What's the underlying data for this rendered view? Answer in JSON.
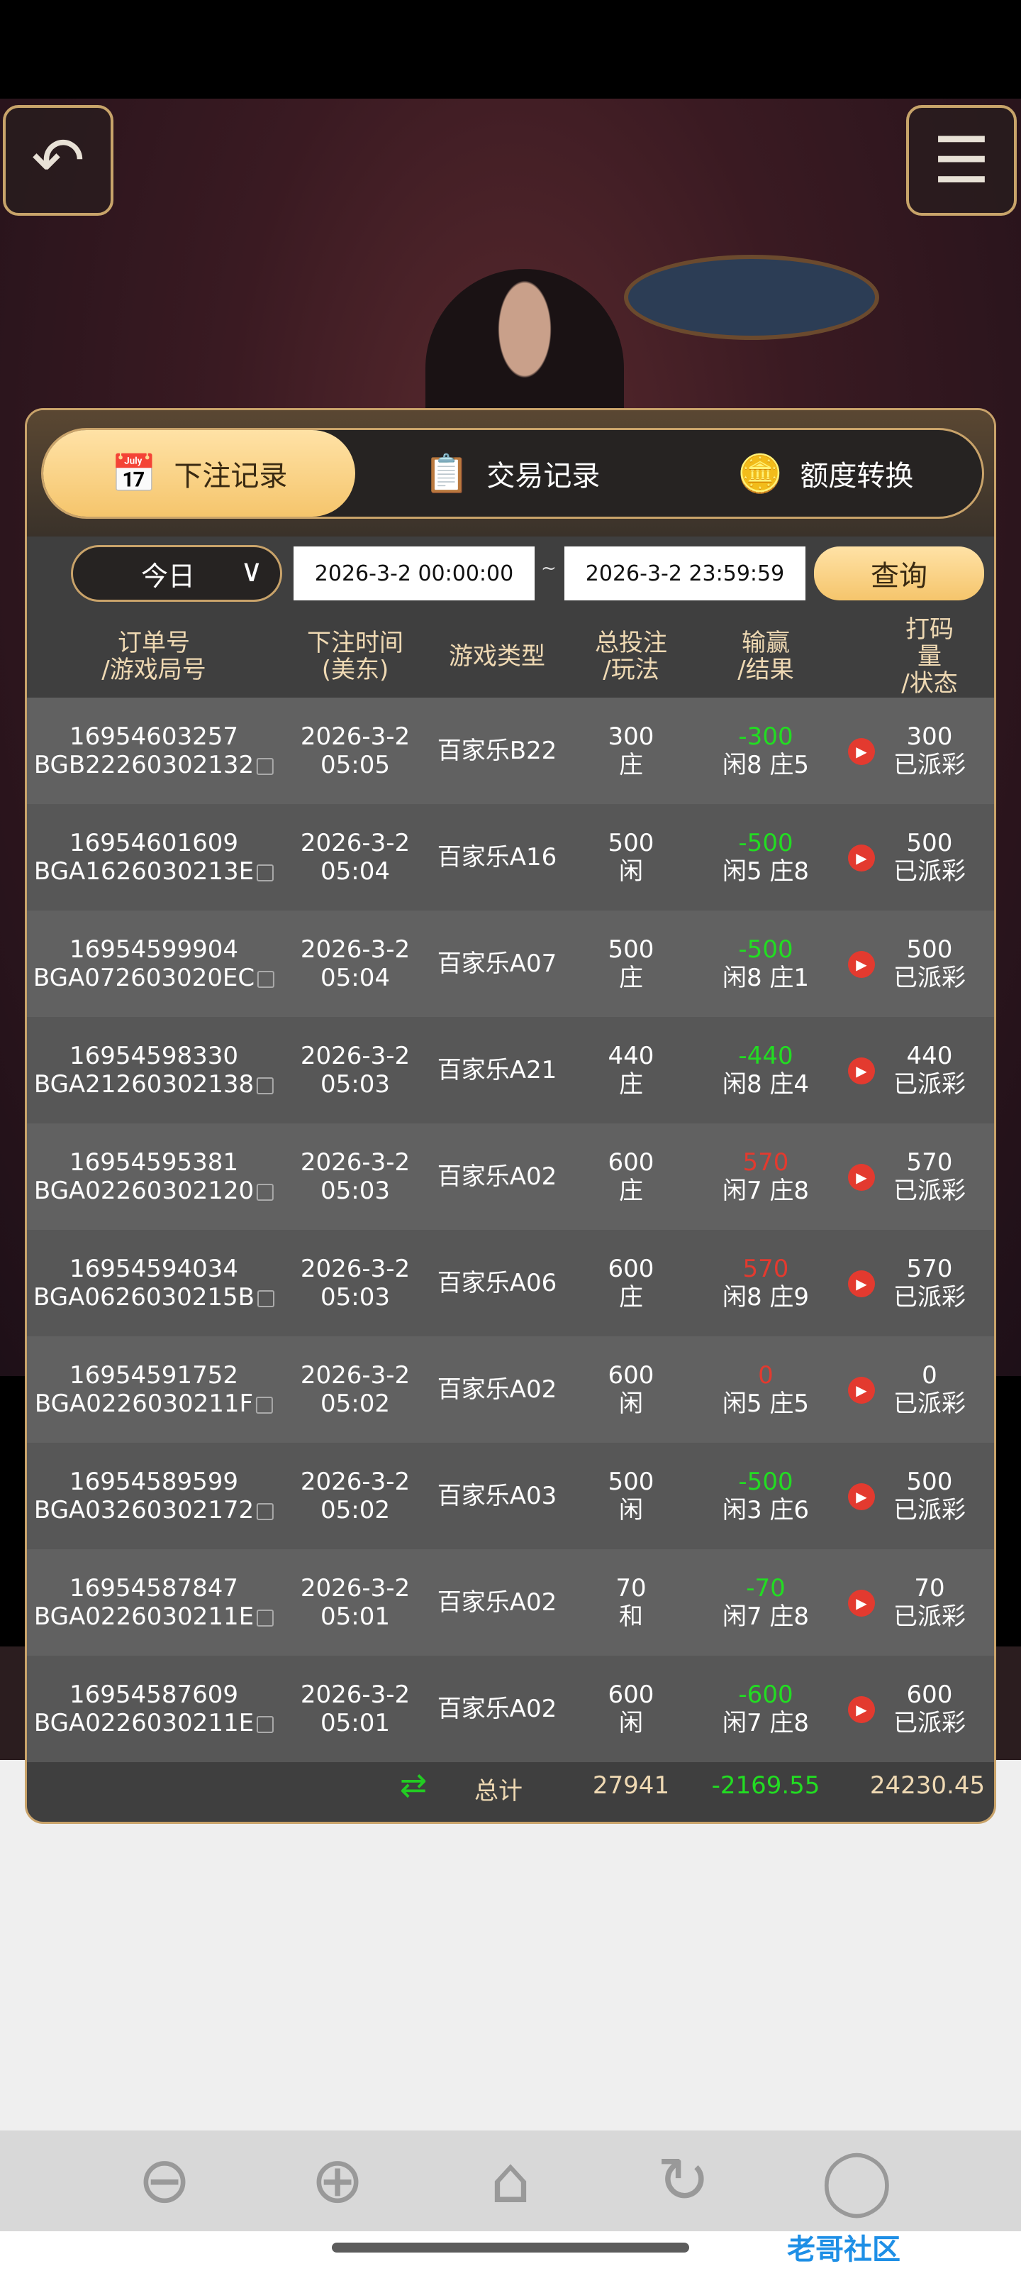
{
  "top_buttons": {
    "back_icon": "undo-arrow-icon",
    "menu_icon": "hamburger-menu-icon"
  },
  "tabs": [
    {
      "label": "下注记录",
      "icon": "calendar-icon",
      "active": true
    },
    {
      "label": "交易记录",
      "icon": "clipboard-icon",
      "active": false
    },
    {
      "label": "额度转换",
      "icon": "coins-dollar-icon",
      "active": false
    }
  ],
  "filter": {
    "range": "今日",
    "start": "2026-3-2 00:00:00",
    "separator": "~",
    "end": "2026-3-2 23:59:59",
    "query_label": "查询"
  },
  "columns": [
    [
      "订单号",
      "/游戏局号"
    ],
    [
      "下注时间",
      "(美东)"
    ],
    [
      "游戏类型",
      ""
    ],
    [
      "总投注",
      "/玩法"
    ],
    [
      "输赢",
      "/结果"
    ],
    [
      "打码量",
      "/状态"
    ]
  ],
  "rows": [
    {
      "order": "16954603257",
      "round": "BGB22260302132",
      "date": "2026-3-2",
      "time": "05:05",
      "game": "百家乐B22",
      "bet": "300",
      "play": "庄",
      "winloss": "-300",
      "result": "闲8 庄5",
      "code": "300",
      "status": "已派彩"
    },
    {
      "order": "16954601609",
      "round": "BGA1626030213E",
      "date": "2026-3-2",
      "time": "05:04",
      "game": "百家乐A16",
      "bet": "500",
      "play": "闲",
      "winloss": "-500",
      "result": "闲5 庄8",
      "code": "500",
      "status": "已派彩"
    },
    {
      "order": "16954599904",
      "round": "BGA072603020EC",
      "date": "2026-3-2",
      "time": "05:04",
      "game": "百家乐A07",
      "bet": "500",
      "play": "庄",
      "winloss": "-500",
      "result": "闲8 庄1",
      "code": "500",
      "status": "已派彩"
    },
    {
      "order": "16954598330",
      "round": "BGA21260302138",
      "date": "2026-3-2",
      "time": "05:03",
      "game": "百家乐A21",
      "bet": "440",
      "play": "庄",
      "winloss": "-440",
      "result": "闲8 庄4",
      "code": "440",
      "status": "已派彩"
    },
    {
      "order": "16954595381",
      "round": "BGA02260302120",
      "date": "2026-3-2",
      "time": "05:03",
      "game": "百家乐A02",
      "bet": "600",
      "play": "庄",
      "winloss": "570",
      "result": "闲7 庄8",
      "code": "570",
      "status": "已派彩"
    },
    {
      "order": "16954594034",
      "round": "BGA0626030215B",
      "date": "2026-3-2",
      "time": "05:03",
      "game": "百家乐A06",
      "bet": "600",
      "play": "庄",
      "winloss": "570",
      "result": "闲8 庄9",
      "code": "570",
      "status": "已派彩"
    },
    {
      "order": "16954591752",
      "round": "BGA0226030211F",
      "date": "2026-3-2",
      "time": "05:02",
      "game": "百家乐A02",
      "bet": "600",
      "play": "闲",
      "winloss": "0",
      "result": "闲5 庄5",
      "code": "0",
      "status": "已派彩"
    },
    {
      "order": "16954589599",
      "round": "BGA03260302172",
      "date": "2026-3-2",
      "time": "05:02",
      "game": "百家乐A03",
      "bet": "500",
      "play": "闲",
      "winloss": "-500",
      "result": "闲3 庄6",
      "code": "500",
      "status": "已派彩"
    },
    {
      "order": "16954587847",
      "round": "BGA0226030211E",
      "date": "2026-3-2",
      "time": "05:01",
      "game": "百家乐A02",
      "bet": "70",
      "play": "和",
      "winloss": "-70",
      "result": "闲7 庄8",
      "code": "70",
      "status": "已派彩"
    },
    {
      "order": "16954587609",
      "round": "BGA0226030211E",
      "date": "2026-3-2",
      "time": "05:01",
      "game": "百家乐A02",
      "bet": "600",
      "play": "闲",
      "winloss": "-600",
      "result": "闲7 庄8",
      "code": "600",
      "status": "已派彩"
    }
  ],
  "footer": {
    "label": "总计",
    "total_bet": "27941",
    "total_winloss": "-2169.55",
    "total_code": "24230.45",
    "icon": "refresh-arrows-icon"
  },
  "colors": {
    "accent": "#f5c56c",
    "loss": "#22dd22",
    "win": "#e33a2f",
    "header_text": "#efd9b3"
  },
  "nav": [
    "back-circle-icon",
    "forward-circle-icon",
    "home-icon",
    "reload-icon",
    "clear-cache-icon"
  ],
  "watermark": "老哥社区"
}
